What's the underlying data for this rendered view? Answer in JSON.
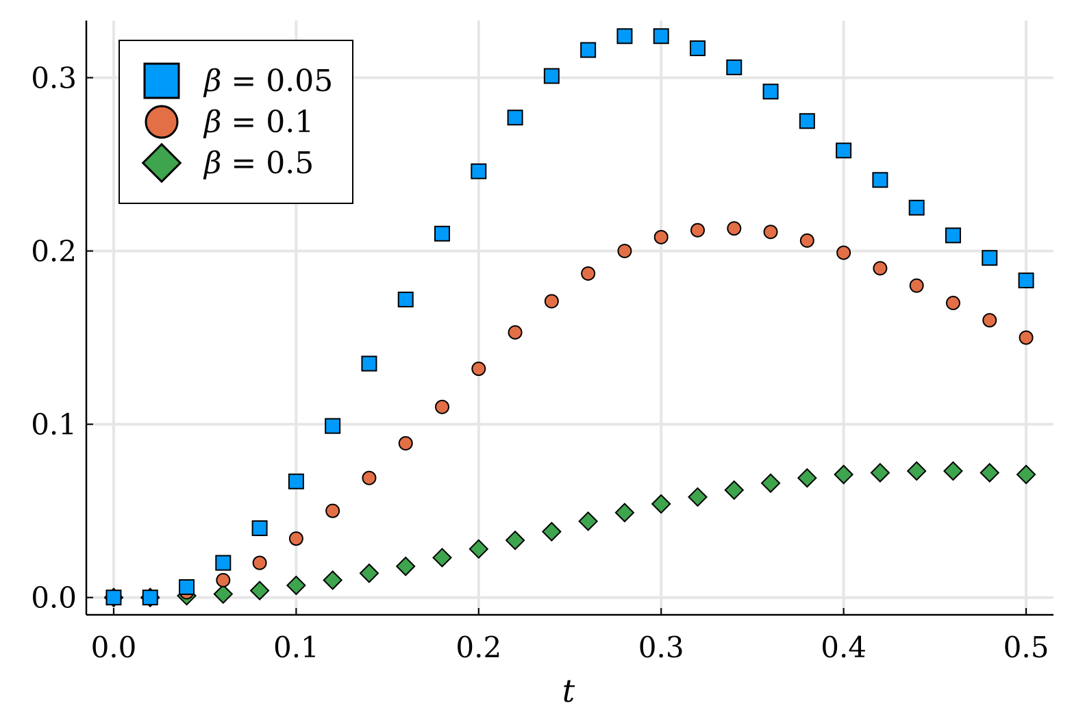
{
  "chart_data": {
    "type": "scatter",
    "title": "",
    "xlabel": "t",
    "ylabel": "",
    "xlim": [
      -0.015,
      0.515
    ],
    "ylim": [
      -0.01,
      0.333
    ],
    "xticks": [
      0.0,
      0.1,
      0.2,
      0.3,
      0.4,
      0.5
    ],
    "xtick_labels": [
      "0.0",
      "0.1",
      "0.2",
      "0.3",
      "0.4",
      "0.5"
    ],
    "yticks": [
      0.0,
      0.1,
      0.2,
      0.3
    ],
    "ytick_labels": [
      "0.0",
      "0.1",
      "0.2",
      "0.3"
    ],
    "grid": true,
    "legend_position": "top-left",
    "x": [
      0.0,
      0.02,
      0.04,
      0.06,
      0.08,
      0.1,
      0.12,
      0.14,
      0.16,
      0.18,
      0.2,
      0.22,
      0.24,
      0.26,
      0.28,
      0.3,
      0.32,
      0.34,
      0.36,
      0.38,
      0.4,
      0.42,
      0.44,
      0.46,
      0.48,
      0.5
    ],
    "series": [
      {
        "name": "β = 0.05",
        "legend_symbol": "β",
        "legend_value": "= 0.05",
        "marker": "square",
        "color": "#009AFA",
        "values": [
          0.0,
          0.0,
          0.006,
          0.02,
          0.04,
          0.067,
          0.099,
          0.135,
          0.172,
          0.21,
          0.246,
          0.277,
          0.301,
          0.316,
          0.324,
          0.324,
          0.317,
          0.306,
          0.292,
          0.275,
          0.258,
          0.241,
          0.225,
          0.209,
          0.196,
          0.183
        ]
      },
      {
        "name": "β = 0.1",
        "legend_symbol": "β",
        "legend_value": "= 0.1",
        "marker": "circle",
        "color": "#E36F47",
        "values": [
          0.0,
          0.0,
          0.003,
          0.01,
          0.02,
          0.034,
          0.05,
          0.069,
          0.089,
          0.11,
          0.132,
          0.153,
          0.171,
          0.187,
          0.2,
          0.208,
          0.212,
          0.213,
          0.211,
          0.206,
          0.199,
          0.19,
          0.18,
          0.17,
          0.16,
          0.15
        ]
      },
      {
        "name": "β = 0.5",
        "legend_symbol": "β",
        "legend_value": "= 0.5",
        "marker": "diamond",
        "color": "#3EA44E",
        "values": [
          0.0,
          0.0,
          0.001,
          0.002,
          0.004,
          0.007,
          0.01,
          0.014,
          0.018,
          0.023,
          0.028,
          0.033,
          0.038,
          0.044,
          0.049,
          0.054,
          0.058,
          0.062,
          0.066,
          0.069,
          0.071,
          0.072,
          0.073,
          0.073,
          0.072,
          0.071
        ]
      }
    ]
  }
}
